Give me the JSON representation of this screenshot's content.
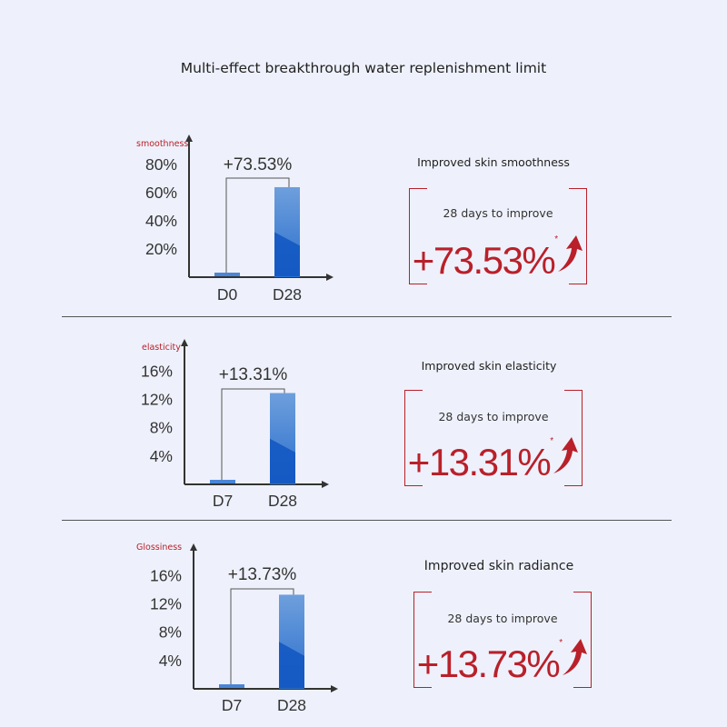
{
  "title": "Multi-effect breakthrough water replenishment limit",
  "colors": {
    "accent_red": "#b9202a",
    "bar_blue": "#1a5fc4",
    "bar_blue_light": "#7eaee0"
  },
  "panels": [
    {
      "ylabel": "smoothness",
      "improvement_label": "+73.53%",
      "subtitle": "Improved skin smoothness",
      "days_text": "28 days to improve",
      "big_value": "+73.53%",
      "asterisk": "*",
      "arrow_icon": "red-up-arrow-icon"
    },
    {
      "ylabel": "elasticity",
      "improvement_label": "+13.31%",
      "subtitle": "Improved skin elasticity",
      "days_text": "28 days to improve",
      "big_value": "+13.31%",
      "asterisk": "*",
      "arrow_icon": "red-up-arrow-icon"
    },
    {
      "ylabel": "Glossiness",
      "improvement_label": "+13.73%",
      "subtitle": "Improved skin radiance",
      "days_text": "28 days to improve",
      "big_value": "+13.73%",
      "asterisk": "*",
      "arrow_icon": "red-up-arrow-icon"
    }
  ],
  "chart_data": [
    {
      "type": "bar",
      "categories": [
        "D0",
        "D28"
      ],
      "values": [
        1.5,
        64
      ],
      "ylabel": "smoothness",
      "yticks": [
        "20%",
        "40%",
        "60%",
        "80%"
      ],
      "ytick_values": [
        20,
        40,
        60,
        80
      ],
      "ylim": [
        0,
        95
      ],
      "annotation": "+73.53%"
    },
    {
      "type": "bar",
      "categories": [
        "D7",
        "D28"
      ],
      "values": [
        0.4,
        12.9
      ],
      "ylabel": "elasticity",
      "yticks": [
        "4%",
        "8%",
        "12%",
        "16%"
      ],
      "ytick_values": [
        4,
        8,
        12,
        16
      ],
      "ylim": [
        0,
        19
      ],
      "annotation": "+13.31%"
    },
    {
      "type": "bar",
      "categories": [
        "D7",
        "D28"
      ],
      "values": [
        0.4,
        13.3
      ],
      "ylabel": "Glossiness",
      "yticks": [
        "4%",
        "8%",
        "12%",
        "16%"
      ],
      "ytick_values": [
        4,
        8,
        12,
        16
      ],
      "ylim": [
        0,
        19
      ],
      "annotation": "+13.73%"
    }
  ]
}
